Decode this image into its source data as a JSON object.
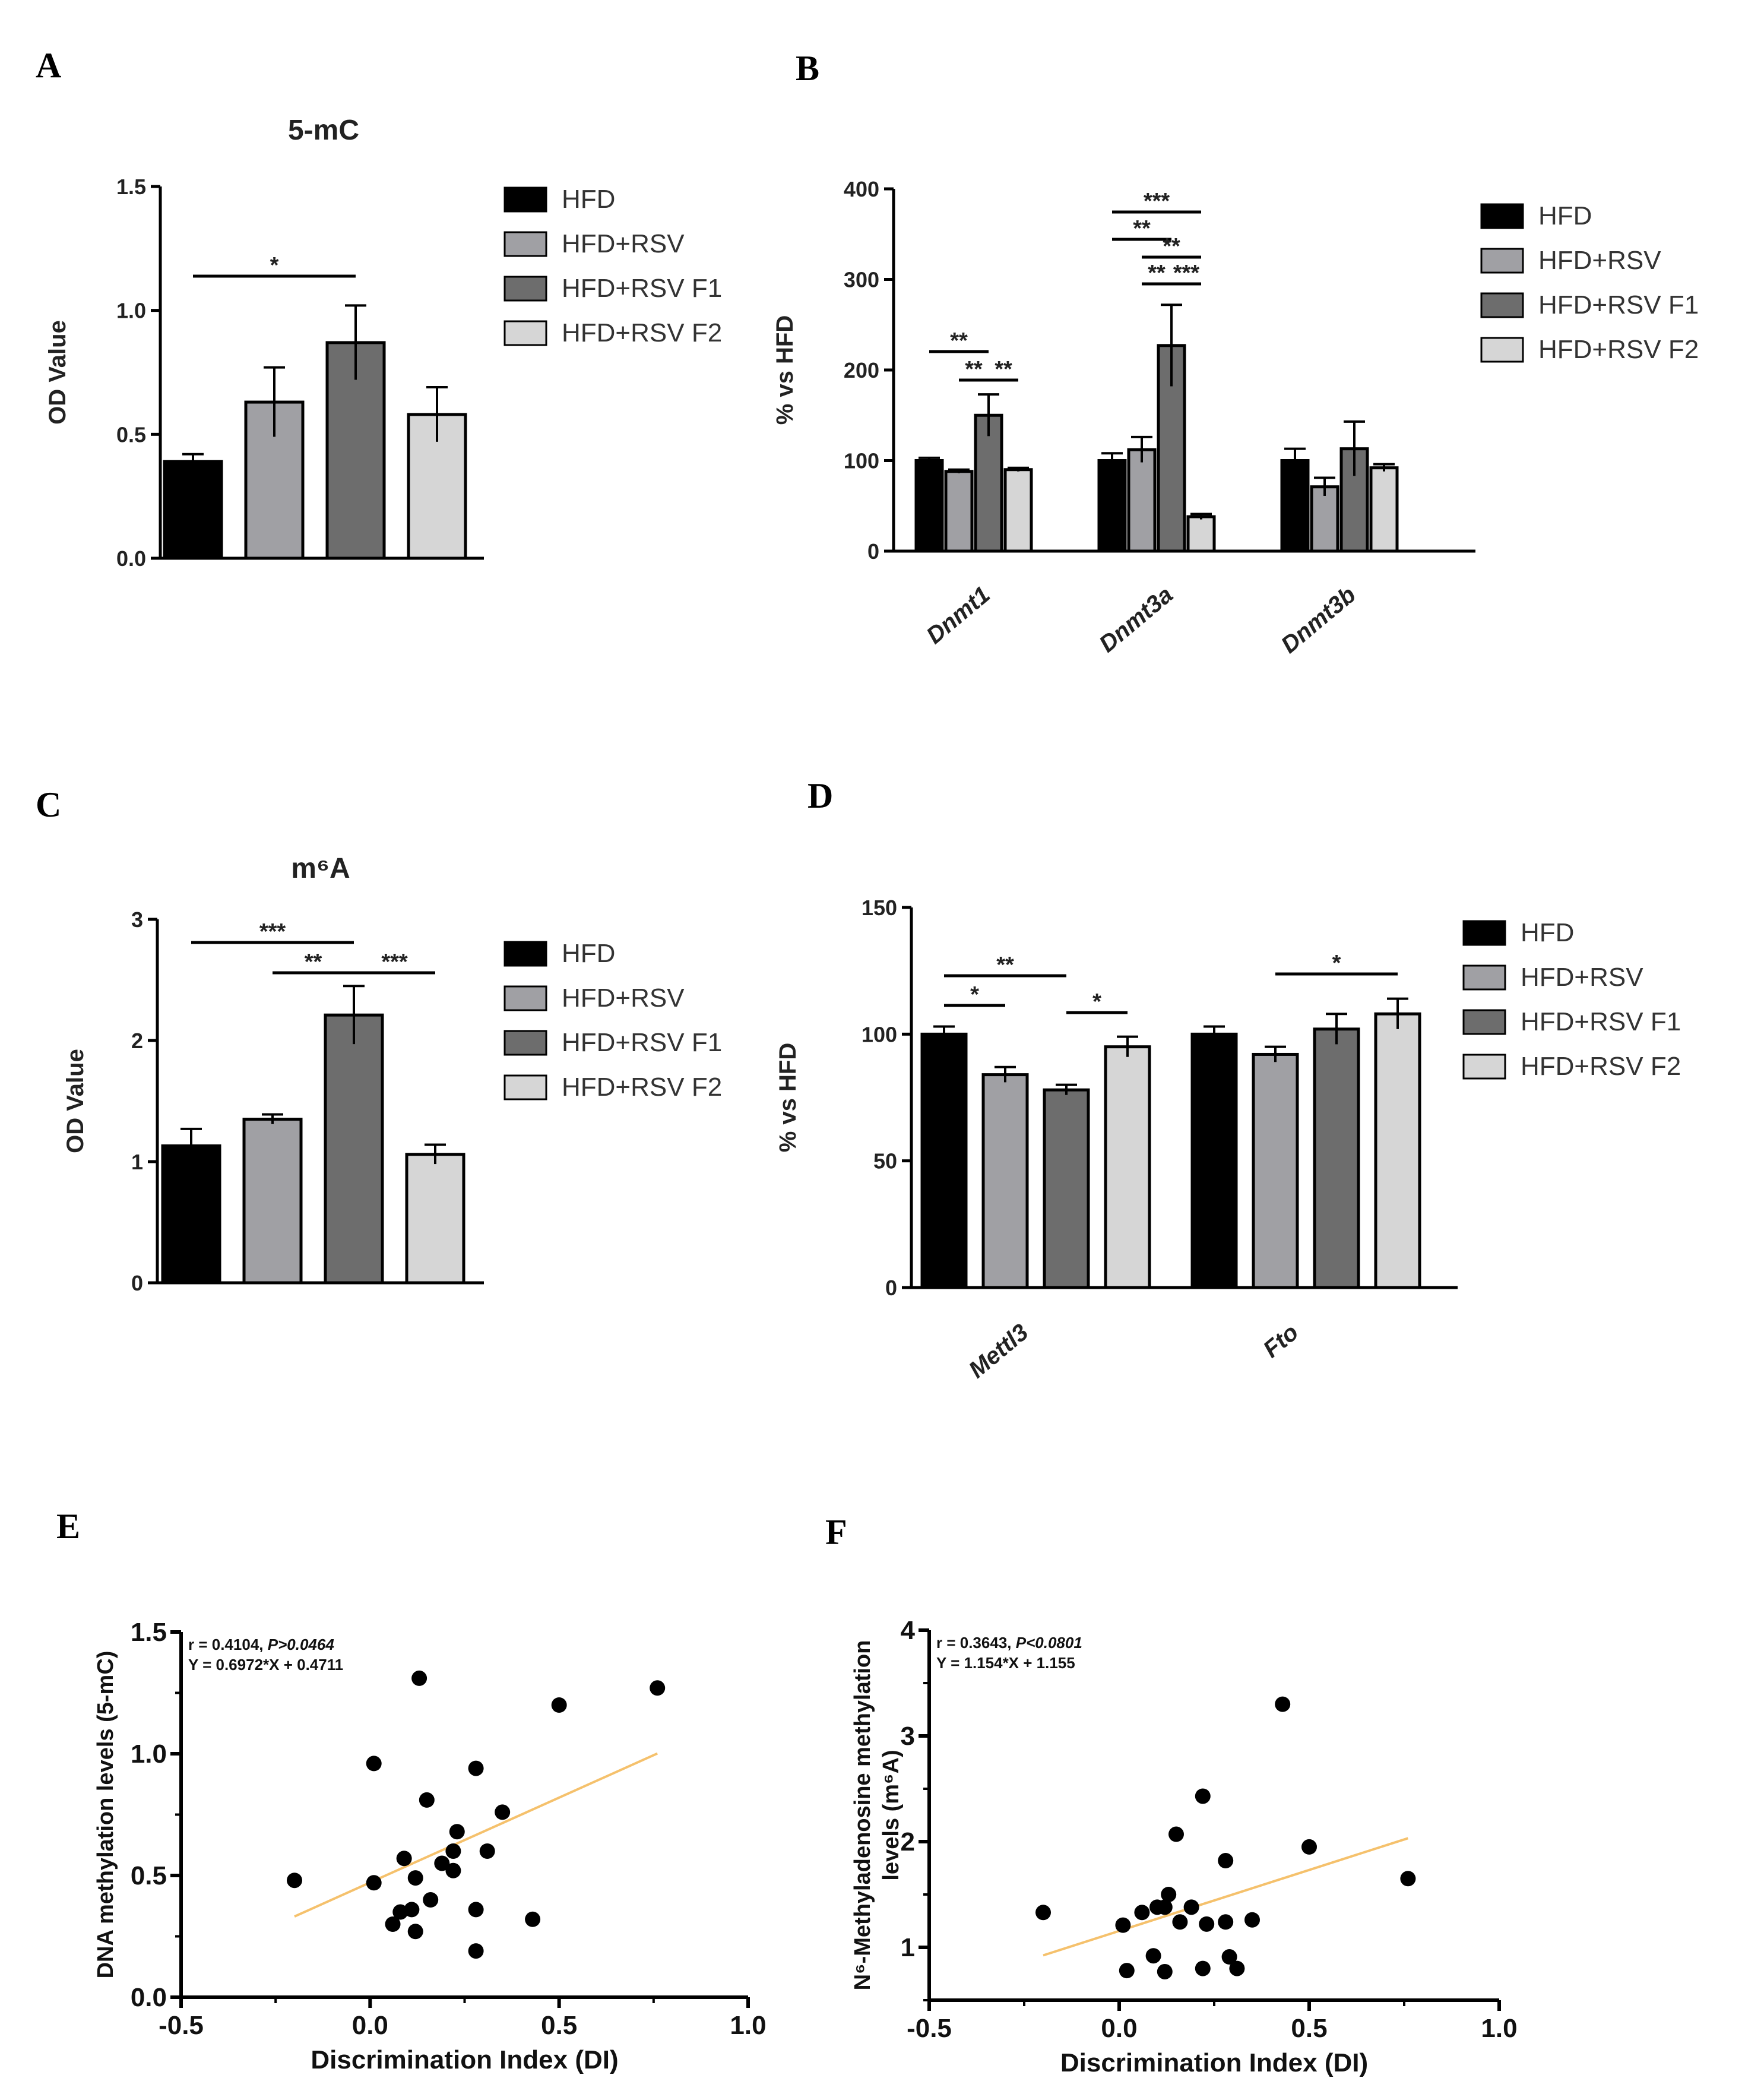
{
  "colors": {
    "HFD": "#000000",
    "HFD+RSV": "#a0a0a4",
    "HFD+RSV F1": "#6d6d6d",
    "HFD+RSV F2": "#d6d6d6",
    "fit_line": "#f5c16c"
  },
  "chart_data": [
    {
      "panel": "A",
      "type": "bar",
      "title": "5-mC",
      "ylabel": "OD Value",
      "ylim": [
        0,
        1.5
      ],
      "yticks": [
        "0.0",
        "0.5",
        "1.0",
        "1.5"
      ],
      "legend": [
        "HFD",
        "HFD+RSV",
        "HFD+RSV F1",
        "HFD+RSV F2"
      ],
      "legend_position": "right",
      "values": [
        0.39,
        0.63,
        0.87,
        0.58
      ],
      "errors": [
        0.03,
        0.14,
        0.15,
        0.11
      ],
      "significance": [
        {
          "from": 0,
          "to": 2,
          "label": "*"
        }
      ]
    },
    {
      "panel": "B",
      "type": "bar",
      "ylabel": "% vs HFD",
      "ylim": [
        0,
        400
      ],
      "yticks": [
        "0",
        "100",
        "200",
        "300",
        "400"
      ],
      "categories": [
        "Dnmt1",
        "Dnmt3a",
        "Dnmt3b"
      ],
      "legend": [
        "HFD",
        "HFD+RSV",
        "HFD+RSV F1",
        "HFD+RSV F2"
      ],
      "legend_position": "right",
      "series": [
        {
          "name": "HFD",
          "values": [
            100,
            100,
            100
          ],
          "errors": [
            3,
            8,
            13
          ]
        },
        {
          "name": "HFD+RSV",
          "values": [
            88,
            112,
            71
          ],
          "errors": [
            2,
            14,
            10
          ]
        },
        {
          "name": "HFD+RSV F1",
          "values": [
            150,
            227,
            113
          ],
          "errors": [
            23,
            45,
            30
          ]
        },
        {
          "name": "HFD+RSV F2",
          "values": [
            90,
            38,
            92
          ],
          "errors": [
            2,
            3,
            4
          ]
        }
      ],
      "significance": [
        {
          "category": 0,
          "from": 0,
          "to": 2,
          "label": "**"
        },
        {
          "category": 0,
          "from": 1,
          "to": 2,
          "label": "**"
        },
        {
          "category": 0,
          "from": 2,
          "to": 3,
          "label": "**"
        },
        {
          "category": 1,
          "from": 0,
          "to": 3,
          "label": "***"
        },
        {
          "category": 1,
          "from": 0,
          "to": 2,
          "label": "**"
        },
        {
          "category": 1,
          "from": 1,
          "to": 3,
          "label": "**"
        },
        {
          "category": 1,
          "from": 1,
          "to": 2,
          "label": "**"
        },
        {
          "category": 1,
          "from": 2,
          "to": 3,
          "label": "***"
        }
      ]
    },
    {
      "panel": "C",
      "type": "bar",
      "title": "m⁶A",
      "ylabel": "OD Value",
      "ylim": [
        0,
        3
      ],
      "yticks": [
        "0",
        "1",
        "2",
        "3"
      ],
      "legend": [
        "HFD",
        "HFD+RSV",
        "HFD+RSV F1",
        "HFD+RSV F2"
      ],
      "legend_position": "right",
      "values": [
        1.13,
        1.35,
        2.21,
        1.06
      ],
      "errors": [
        0.14,
        0.04,
        0.24,
        0.08
      ],
      "significance": [
        {
          "from": 0,
          "to": 2,
          "label": "***"
        },
        {
          "from": 1,
          "to": 2,
          "label": "**"
        },
        {
          "from": 2,
          "to": 3,
          "label": "***"
        }
      ]
    },
    {
      "panel": "D",
      "type": "bar",
      "ylabel": "% vs HFD",
      "ylim": [
        0,
        150
      ],
      "yticks": [
        "0",
        "50",
        "100",
        "150"
      ],
      "categories": [
        "Mettl3",
        "Fto"
      ],
      "legend": [
        "HFD",
        "HFD+RSV",
        "HFD+RSV F1",
        "HFD+RSV F2"
      ],
      "legend_position": "right",
      "series": [
        {
          "name": "HFD",
          "values": [
            100,
            100
          ],
          "errors": [
            3,
            3
          ]
        },
        {
          "name": "HFD+RSV",
          "values": [
            84,
            92
          ],
          "errors": [
            3,
            3
          ]
        },
        {
          "name": "HFD+RSV F1",
          "values": [
            78,
            102
          ],
          "errors": [
            2,
            6
          ]
        },
        {
          "name": "HFD+RSV F2",
          "values": [
            95,
            108
          ],
          "errors": [
            4,
            6
          ]
        }
      ],
      "significance": [
        {
          "category": 0,
          "from": 0,
          "to": 2,
          "label": "**"
        },
        {
          "category": 0,
          "from": 0,
          "to": 1,
          "label": "*"
        },
        {
          "category": 0,
          "from": 2,
          "to": 3,
          "label": "*"
        },
        {
          "category": 1,
          "from": 1,
          "to": 3,
          "label": "*"
        }
      ]
    },
    {
      "panel": "E",
      "type": "scatter",
      "xlabel": "Discrimination Index (DI)",
      "ylabel": "DNA methylation levels (5-mC)",
      "xlim": [
        -0.5,
        1.0
      ],
      "ylim": [
        0,
        1.5
      ],
      "xticks": [
        "-0.5",
        "0.0",
        "0.5",
        "1.0"
      ],
      "yticks": [
        "0.0",
        "0.5",
        "1.0",
        "1.5"
      ],
      "stats_r": "r = 0.4104, ",
      "stats_p": "P>0.0464",
      "equation": "Y = 0.6972*X + 0.4711",
      "fit": {
        "slope": 0.6972,
        "intercept": 0.4711,
        "x_range": [
          -0.2,
          0.76
        ]
      },
      "points": [
        [
          -0.2,
          0.48
        ],
        [
          0.01,
          0.47
        ],
        [
          0.01,
          0.96
        ],
        [
          0.06,
          0.3
        ],
        [
          0.08,
          0.35
        ],
        [
          0.09,
          0.57
        ],
        [
          0.11,
          0.36
        ],
        [
          0.12,
          0.49
        ],
        [
          0.12,
          0.27
        ],
        [
          0.13,
          1.31
        ],
        [
          0.15,
          0.81
        ],
        [
          0.16,
          0.4
        ],
        [
          0.19,
          0.55
        ],
        [
          0.22,
          0.52
        ],
        [
          0.22,
          0.6
        ],
        [
          0.23,
          0.68
        ],
        [
          0.28,
          0.94
        ],
        [
          0.28,
          0.36
        ],
        [
          0.28,
          0.19
        ],
        [
          0.31,
          0.6
        ],
        [
          0.35,
          0.76
        ],
        [
          0.43,
          0.32
        ],
        [
          0.5,
          1.2
        ],
        [
          0.76,
          1.27
        ]
      ]
    },
    {
      "panel": "F",
      "type": "scatter",
      "xlabel": "Discrimination Index (DI)",
      "ylabel_lines": [
        "N⁶-Methyladenosine methylation",
        "levels (m⁶A)"
      ],
      "xlim": [
        -0.5,
        1.0
      ],
      "ylim": [
        0.5,
        4
      ],
      "xticks": [
        "-0.5",
        "0.0",
        "0.5",
        "1.0"
      ],
      "yticks": [
        "1",
        "2",
        "3",
        "4"
      ],
      "stats_r": "r = 0.3643, ",
      "stats_p": "P<0.0801",
      "equation": "Y = 1.154*X + 1.155",
      "fit": {
        "slope": 1.154,
        "intercept": 1.155,
        "x_range": [
          -0.2,
          0.76
        ]
      },
      "points": [
        [
          -0.2,
          1.33
        ],
        [
          0.01,
          1.21
        ],
        [
          0.02,
          0.78
        ],
        [
          0.06,
          1.33
        ],
        [
          0.09,
          0.92
        ],
        [
          0.1,
          1.38
        ],
        [
          0.12,
          1.38
        ],
        [
          0.12,
          0.77
        ],
        [
          0.13,
          1.5
        ],
        [
          0.15,
          2.07
        ],
        [
          0.16,
          1.24
        ],
        [
          0.19,
          1.38
        ],
        [
          0.22,
          2.43
        ],
        [
          0.22,
          0.8
        ],
        [
          0.23,
          1.22
        ],
        [
          0.28,
          1.82
        ],
        [
          0.28,
          1.24
        ],
        [
          0.29,
          0.91
        ],
        [
          0.31,
          0.8
        ],
        [
          0.35,
          1.26
        ],
        [
          0.43,
          3.3
        ],
        [
          0.5,
          1.95
        ],
        [
          0.76,
          1.65
        ]
      ]
    }
  ]
}
